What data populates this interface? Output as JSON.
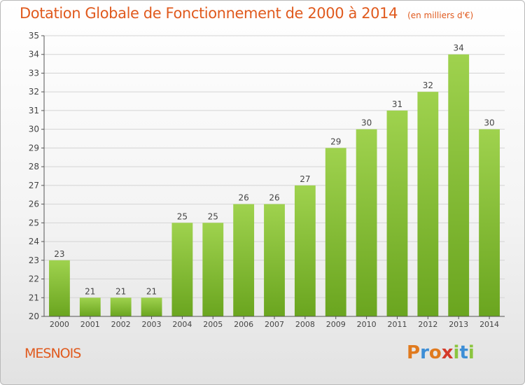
{
  "header": {
    "title": "Dotation Globale de Fonctionnement de 2000 à 2014",
    "subtitle": "(en milliers d'€)"
  },
  "footer": {
    "commune": "MESNOIS",
    "logo_text": "Proxiti"
  },
  "colors": {
    "title": "#e05a1e",
    "bar_light": "#9fd24e",
    "bar_dark": "#6aa51f",
    "logo_letters": [
      "#e07a1e",
      "#3d8ed6",
      "#e07a1e",
      "#d43a2a",
      "#8bc53f",
      "#3d8ed6",
      "#8bc53f"
    ]
  },
  "chart_data": {
    "type": "bar",
    "title": "Dotation Globale de Fonctionnement de 2000 à 2014",
    "subtitle": "(en milliers d'€)",
    "categories": [
      "2000",
      "2001",
      "2002",
      "2003",
      "2004",
      "2005",
      "2006",
      "2007",
      "2008",
      "2009",
      "2010",
      "2011",
      "2012",
      "2013",
      "2014"
    ],
    "values": [
      23,
      21,
      21,
      21,
      25,
      25,
      26,
      26,
      27,
      29,
      30,
      31,
      32,
      34,
      30
    ],
    "ylim": [
      20,
      35
    ],
    "yticks": [
      20,
      21,
      22,
      23,
      24,
      25,
      26,
      27,
      28,
      29,
      30,
      31,
      32,
      33,
      34,
      35
    ],
    "grid": true,
    "data_labels": true
  }
}
